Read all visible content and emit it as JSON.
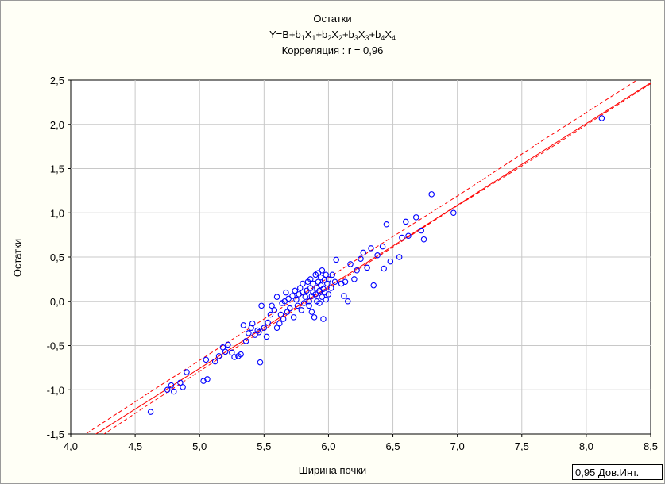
{
  "chart_data": {
    "type": "scatter",
    "title": "Остатки",
    "subtitle_parts": [
      {
        "t": "Y=B+b",
        "s": false
      },
      {
        "t": "1",
        "s": true
      },
      {
        "t": "X",
        "s": false
      },
      {
        "t": "1",
        "s": true
      },
      {
        "t": "+b",
        "s": false
      },
      {
        "t": "2",
        "s": true
      },
      {
        "t": "X",
        "s": false
      },
      {
        "t": "2",
        "s": true
      },
      {
        "t": "+b",
        "s": false
      },
      {
        "t": "3",
        "s": true
      },
      {
        "t": "X",
        "s": false
      },
      {
        "t": "3",
        "s": true
      },
      {
        "t": "+b",
        "s": false
      },
      {
        "t": "4",
        "s": true
      },
      {
        "t": "X",
        "s": false
      },
      {
        "t": "4",
        "s": true
      }
    ],
    "correlation_label": "Корреляция : r = 0,96",
    "xlabel": "Ширина почки",
    "ylabel": "Остатки",
    "xlim": [
      4.0,
      8.5
    ],
    "ylim": [
      -1.5,
      2.5
    ],
    "x_ticks": [
      "4,0",
      "4,5",
      "5,0",
      "5,5",
      "6,0",
      "6,5",
      "7,0",
      "7,5",
      "8,0",
      "8,5"
    ],
    "y_ticks": [
      "-1,5",
      "-1,0",
      "-0,5",
      "0,0",
      "0,5",
      "1,0",
      "1,5",
      "2,0",
      "2,5"
    ],
    "grid": true,
    "legend_label": "0,95 Дов.Инт.",
    "legend_position": "bottom-right",
    "colors": {
      "points": "#0000ff",
      "regression": "#ff0000",
      "grid": "#c8c8c8"
    },
    "regression": {
      "x": [
        4.0,
        8.5
      ],
      "y": [
        -1.68,
        2.47
      ]
    },
    "confidence_upper": {
      "x": [
        4.0,
        4.6,
        5.2,
        5.8,
        6.4,
        7.0,
        7.6,
        8.2,
        8.5
      ],
      "y": [
        -1.61,
        -1.04,
        -0.48,
        0.08,
        0.64,
        1.19,
        1.76,
        2.32,
        2.6
      ]
    },
    "confidence_lower": {
      "x": [
        4.0,
        4.6,
        5.2,
        5.8,
        6.4,
        7.0,
        7.6,
        8.2,
        8.5
      ],
      "y": [
        -1.75,
        -1.17,
        -0.6,
        -0.04,
        0.52,
        1.08,
        1.62,
        2.18,
        2.46
      ]
    },
    "points": [
      {
        "x": 4.62,
        "y": -1.25
      },
      {
        "x": 4.75,
        "y": -1.0
      },
      {
        "x": 4.78,
        "y": -0.95
      },
      {
        "x": 4.8,
        "y": -1.02
      },
      {
        "x": 4.85,
        "y": -0.92
      },
      {
        "x": 4.87,
        "y": -0.97
      },
      {
        "x": 4.9,
        "y": -0.8
      },
      {
        "x": 5.03,
        "y": -0.9
      },
      {
        "x": 5.06,
        "y": -0.88
      },
      {
        "x": 5.05,
        "y": -0.66
      },
      {
        "x": 5.12,
        "y": -0.68
      },
      {
        "x": 5.15,
        "y": -0.62
      },
      {
        "x": 5.18,
        "y": -0.52
      },
      {
        "x": 5.2,
        "y": -0.57
      },
      {
        "x": 5.22,
        "y": -0.49
      },
      {
        "x": 5.25,
        "y": -0.58
      },
      {
        "x": 5.27,
        "y": -0.63
      },
      {
        "x": 5.3,
        "y": -0.62
      },
      {
        "x": 5.32,
        "y": -0.6
      },
      {
        "x": 5.34,
        "y": -0.27
      },
      {
        "x": 5.36,
        "y": -0.45
      },
      {
        "x": 5.38,
        "y": -0.36
      },
      {
        "x": 5.4,
        "y": -0.3
      },
      {
        "x": 5.41,
        "y": -0.25
      },
      {
        "x": 5.43,
        "y": -0.38
      },
      {
        "x": 5.45,
        "y": -0.33
      },
      {
        "x": 5.46,
        "y": -0.35
      },
      {
        "x": 5.47,
        "y": -0.69
      },
      {
        "x": 5.48,
        "y": -0.05
      },
      {
        "x": 5.5,
        "y": -0.3
      },
      {
        "x": 5.52,
        "y": -0.4
      },
      {
        "x": 5.53,
        "y": -0.24
      },
      {
        "x": 5.55,
        "y": -0.15
      },
      {
        "x": 5.56,
        "y": -0.05
      },
      {
        "x": 5.58,
        "y": -0.1
      },
      {
        "x": 5.6,
        "y": -0.3
      },
      {
        "x": 5.6,
        "y": 0.05
      },
      {
        "x": 5.62,
        "y": -0.25
      },
      {
        "x": 5.63,
        "y": -0.15
      },
      {
        "x": 5.64,
        "y": -0.02
      },
      {
        "x": 5.65,
        "y": -0.2
      },
      {
        "x": 5.66,
        "y": 0.0
      },
      {
        "x": 5.67,
        "y": 0.1
      },
      {
        "x": 5.68,
        "y": -0.12
      },
      {
        "x": 5.69,
        "y": 0.03
      },
      {
        "x": 5.7,
        "y": -0.08
      },
      {
        "x": 5.72,
        "y": 0.06
      },
      {
        "x": 5.73,
        "y": -0.18
      },
      {
        "x": 5.74,
        "y": 0.12
      },
      {
        "x": 5.75,
        "y": 0.02
      },
      {
        "x": 5.76,
        "y": -0.05
      },
      {
        "x": 5.77,
        "y": 0.08
      },
      {
        "x": 5.78,
        "y": 0.15
      },
      {
        "x": 5.79,
        "y": -0.1
      },
      {
        "x": 5.8,
        "y": 0.1
      },
      {
        "x": 5.8,
        "y": 0.2
      },
      {
        "x": 5.81,
        "y": -0.02
      },
      {
        "x": 5.82,
        "y": 0.05
      },
      {
        "x": 5.83,
        "y": 0.12
      },
      {
        "x": 5.84,
        "y": 0.22
      },
      {
        "x": 5.85,
        "y": -0.05
      },
      {
        "x": 5.85,
        "y": 0.0
      },
      {
        "x": 5.86,
        "y": 0.15
      },
      {
        "x": 5.86,
        "y": 0.25
      },
      {
        "x": 5.87,
        "y": 0.06
      },
      {
        "x": 5.87,
        "y": -0.12
      },
      {
        "x": 5.88,
        "y": 0.1
      },
      {
        "x": 5.88,
        "y": 0.2
      },
      {
        "x": 5.89,
        "y": -0.18
      },
      {
        "x": 5.9,
        "y": 0.3
      },
      {
        "x": 5.9,
        "y": 0.08
      },
      {
        "x": 5.91,
        "y": 0.15
      },
      {
        "x": 5.91,
        "y": 0.0
      },
      {
        "x": 5.92,
        "y": 0.22
      },
      {
        "x": 5.92,
        "y": 0.32
      },
      {
        "x": 5.93,
        "y": 0.12
      },
      {
        "x": 5.93,
        "y": -0.02
      },
      {
        "x": 5.94,
        "y": 0.18
      },
      {
        "x": 5.94,
        "y": 0.27
      },
      {
        "x": 5.95,
        "y": 0.05
      },
      {
        "x": 5.95,
        "y": 0.35
      },
      {
        "x": 5.96,
        "y": -0.2
      },
      {
        "x": 5.96,
        "y": 0.14
      },
      {
        "x": 5.97,
        "y": 0.24
      },
      {
        "x": 5.97,
        "y": 0.1
      },
      {
        "x": 5.98,
        "y": 0.02
      },
      {
        "x": 5.98,
        "y": 0.3
      },
      {
        "x": 5.99,
        "y": 0.2
      },
      {
        "x": 6.0,
        "y": 0.08
      },
      {
        "x": 6.0,
        "y": 0.25
      },
      {
        "x": 6.02,
        "y": 0.15
      },
      {
        "x": 6.03,
        "y": 0.3
      },
      {
        "x": 6.05,
        "y": 0.22
      },
      {
        "x": 6.06,
        "y": 0.47
      },
      {
        "x": 6.1,
        "y": 0.2
      },
      {
        "x": 6.12,
        "y": 0.06
      },
      {
        "x": 6.13,
        "y": 0.22
      },
      {
        "x": 6.15,
        "y": 0.0
      },
      {
        "x": 6.17,
        "y": 0.42
      },
      {
        "x": 6.2,
        "y": 0.25
      },
      {
        "x": 6.22,
        "y": 0.35
      },
      {
        "x": 6.25,
        "y": 0.48
      },
      {
        "x": 6.27,
        "y": 0.55
      },
      {
        "x": 6.3,
        "y": 0.38
      },
      {
        "x": 6.33,
        "y": 0.6
      },
      {
        "x": 6.35,
        "y": 0.18
      },
      {
        "x": 6.38,
        "y": 0.52
      },
      {
        "x": 6.42,
        "y": 0.62
      },
      {
        "x": 6.43,
        "y": 0.37
      },
      {
        "x": 6.45,
        "y": 0.87
      },
      {
        "x": 6.48,
        "y": 0.45
      },
      {
        "x": 6.55,
        "y": 0.5
      },
      {
        "x": 6.57,
        "y": 0.72
      },
      {
        "x": 6.6,
        "y": 0.9
      },
      {
        "x": 6.62,
        "y": 0.74
      },
      {
        "x": 6.68,
        "y": 0.95
      },
      {
        "x": 6.72,
        "y": 0.8
      },
      {
        "x": 6.74,
        "y": 0.7
      },
      {
        "x": 6.8,
        "y": 1.21
      },
      {
        "x": 6.97,
        "y": 1.0
      },
      {
        "x": 8.12,
        "y": 2.07
      }
    ]
  }
}
